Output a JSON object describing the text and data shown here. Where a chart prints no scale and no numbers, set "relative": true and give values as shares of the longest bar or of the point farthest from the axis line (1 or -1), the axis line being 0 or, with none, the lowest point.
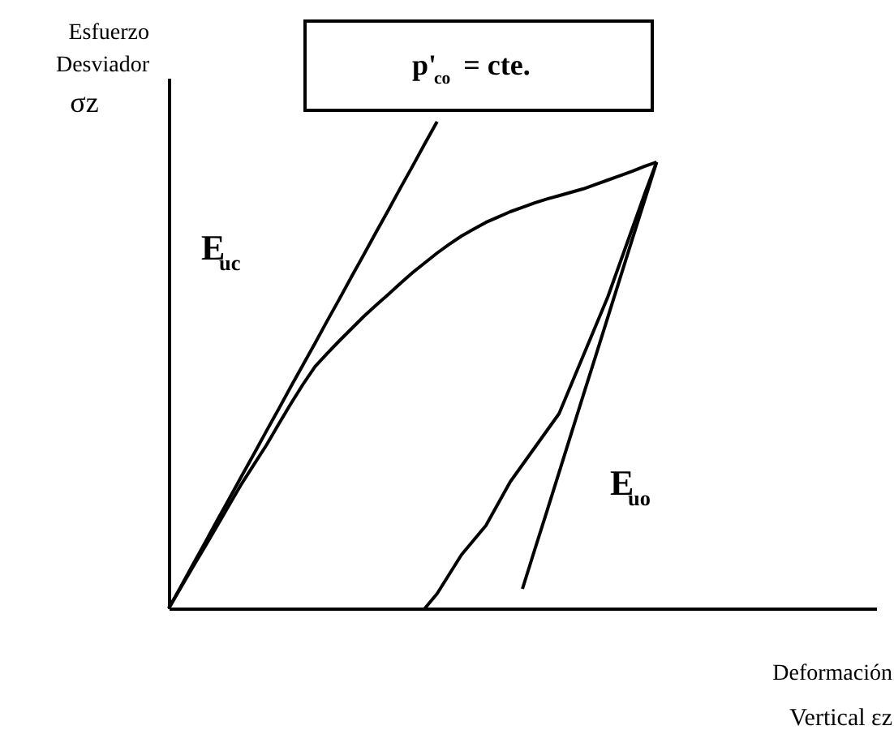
{
  "chart_data": {
    "type": "line",
    "relative": true,
    "title": "p'$_{co}$ = cte.",
    "ylabel": "Esfuerzo Desviador σz",
    "xlabel": "Deformación Vertical εz",
    "tick_labels": false,
    "grid": false,
    "marker": "none",
    "line_style": "solid",
    "categories": [
      null,
      null,
      null,
      null,
      null,
      null,
      null,
      null,
      null,
      null,
      null,
      null,
      null,
      null,
      null,
      null,
      null,
      null,
      null,
      null,
      null,
      null,
      null,
      null,
      null,
      null,
      null,
      null,
      null,
      null,
      null,
      null,
      null,
      null,
      null,
      null,
      null,
      null,
      null,
      null,
      null,
      null,
      null,
      null,
      null,
      null,
      null,
      null,
      null,
      null,
      null,
      null,
      null,
      null,
      null,
      null,
      null,
      null,
      null
    ],
    "series": [
      {
        "color": "#000000",
        "values": [
          0,
          0.043,
          0.086,
          0.128,
          0.171,
          0.214,
          0.257,
          0.296,
          0.335,
          0.378,
          0.42,
          0.46,
          0.497,
          0.524,
          0.55,
          0.575,
          0.6,
          0.623,
          0.645,
          0.668,
          0.69,
          0.71,
          0.73,
          0.748,
          0.765,
          0.779,
          0.793,
          0.804,
          0.815,
          0.824,
          0.833,
          0.841,
          0.848,
          0.855,
          0.862,
          0.871,
          0.88,
          0.889,
          0.898,
          0.908,
          0.917,
          null,
          null,
          null,
          null,
          null,
          null,
          null,
          null,
          null,
          null,
          null,
          null,
          null,
          null,
          null,
          null,
          null,
          null
        ]
      },
      {
        "color": "#000000",
        "values": [
          null,
          null,
          null,
          null,
          null,
          null,
          null,
          null,
          null,
          null,
          null,
          null,
          null,
          null,
          null,
          null,
          null,
          null,
          null,
          null,
          null,
          0,
          0.03,
          0.07,
          0.11,
          0.14,
          0.17,
          0.215,
          0.26,
          0.295,
          0.33,
          0.365,
          0.4,
          0.46,
          0.52,
          0.58,
          0.64,
          0.71,
          0.78,
          0.85,
          0.917,
          null,
          null,
          null,
          null,
          null,
          null,
          null,
          null,
          null,
          null,
          null,
          null,
          null,
          null,
          null,
          null,
          null,
          null
        ]
      },
      {
        "color": "#000000",
        "values": [
          0,
          0.045,
          0.091,
          0.136,
          0.182,
          0.227,
          0.273,
          0.318,
          0.364,
          0.409,
          0.455,
          0.5,
          0.545,
          0.591,
          0.636,
          0.682,
          0.727,
          0.773,
          0.818,
          0.864,
          0.909,
          0.955,
          1,
          null,
          null,
          null,
          null,
          null,
          null,
          null,
          null,
          null,
          null,
          null,
          null,
          null,
          null,
          null,
          null,
          null,
          null,
          null,
          null,
          null,
          null,
          null,
          null,
          null,
          null,
          null,
          null,
          null,
          null,
          null,
          null,
          null,
          null,
          null,
          null
        ]
      },
      {
        "color": "#000000",
        "values": [
          null,
          null,
          null,
          null,
          null,
          null,
          null,
          null,
          null,
          null,
          null,
          null,
          null,
          null,
          null,
          null,
          null,
          null,
          null,
          null,
          null,
          null,
          null,
          null,
          null,
          null,
          null,
          null,
          null,
          0.04,
          0.12,
          0.199,
          0.279,
          0.359,
          0.439,
          0.518,
          0.598,
          0.678,
          0.758,
          0.837,
          0.917,
          null,
          null,
          null,
          null,
          null,
          null,
          null,
          null,
          null,
          null,
          null,
          null,
          null,
          null,
          null,
          null,
          null,
          null
        ]
      }
    ],
    "annotations": [
      "E$_{uc}$",
      "E$_{uo}$"
    ]
  }
}
